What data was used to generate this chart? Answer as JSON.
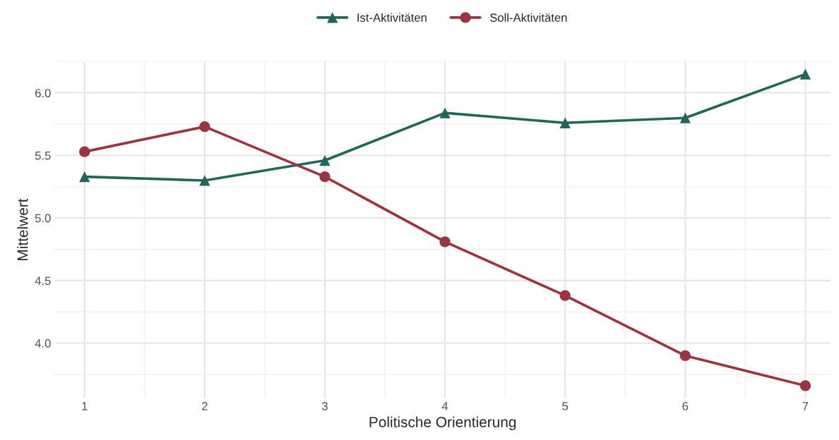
{
  "chart_data": {
    "type": "line",
    "xlabel": "Politische Orientierung",
    "ylabel": "Mittelwert",
    "x": [
      1,
      2,
      3,
      4,
      5,
      6,
      7
    ],
    "series": [
      {
        "name": "Ist-Aktivitäten",
        "color": "#22665a",
        "marker": "triangle",
        "values": [
          5.33,
          5.3,
          5.46,
          5.84,
          5.76,
          5.8,
          6.15
        ]
      },
      {
        "name": "Soll-Aktivitäten",
        "color": "#9b3340",
        "marker": "circle",
        "values": [
          5.53,
          5.73,
          5.33,
          4.81,
          4.38,
          3.9,
          3.66
        ]
      }
    ],
    "xlim": [
      0.75,
      7.21
    ],
    "xticks": [
      1,
      2,
      3,
      4,
      5,
      6,
      7
    ],
    "ylim": [
      3.56,
      6.25
    ],
    "yticks": [
      {
        "value": 4.0,
        "label": "4.0"
      },
      {
        "value": 4.5,
        "label": "4.5"
      },
      {
        "value": 5.0,
        "label": "5.0"
      },
      {
        "value": 5.5,
        "label": "5.5"
      },
      {
        "value": 6.0,
        "label": "6.0"
      }
    ],
    "grid": true,
    "legend": "top",
    "line_style": "solid"
  }
}
